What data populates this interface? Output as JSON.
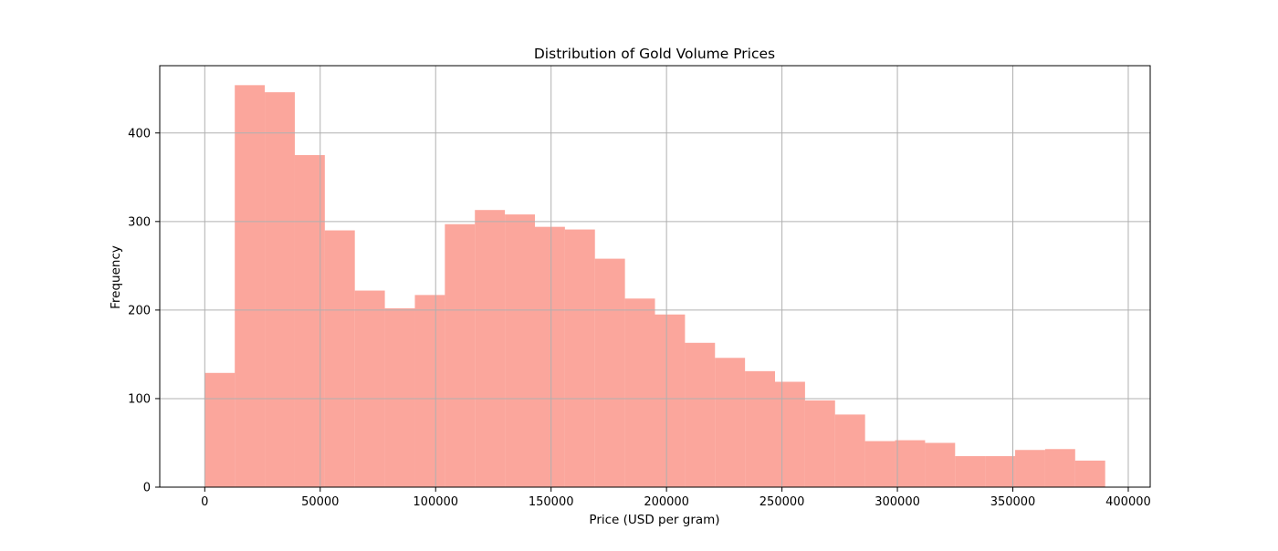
{
  "chart_data": {
    "type": "bar",
    "title": "Distribution of Gold Volume Prices",
    "xlabel": "Price (USD per gram)",
    "ylabel": "Frequency",
    "xlim": [
      -19500,
      409500
    ],
    "ylim": [
      0,
      476
    ],
    "xticks": [
      0,
      50000,
      100000,
      150000,
      200000,
      250000,
      300000,
      350000,
      400000
    ],
    "xtick_labels": [
      "0",
      "50000",
      "100000",
      "150000",
      "200000",
      "250000",
      "300000",
      "350000",
      "400000"
    ],
    "yticks": [
      0,
      100,
      200,
      300,
      400
    ],
    "ytick_labels": [
      "0",
      "100",
      "200",
      "300",
      "400"
    ],
    "grid": true,
    "bar_color": "#FA8072",
    "bar_alpha": 0.7,
    "bin_edges": [
      0,
      13000,
      26000,
      39000,
      52000,
      65000,
      78000,
      91000,
      104000,
      117000,
      130000,
      143000,
      156000,
      169000,
      182000,
      195000,
      208000,
      221000,
      234000,
      247000,
      260000,
      273000,
      286000,
      299000,
      312000,
      325000,
      338000,
      351000,
      364000,
      377000,
      390000
    ],
    "values": [
      129,
      454,
      446,
      375,
      290,
      222,
      202,
      217,
      297,
      313,
      308,
      294,
      291,
      258,
      213,
      195,
      163,
      146,
      131,
      119,
      98,
      82,
      52,
      53,
      50,
      35,
      35,
      42,
      43,
      30
    ]
  }
}
